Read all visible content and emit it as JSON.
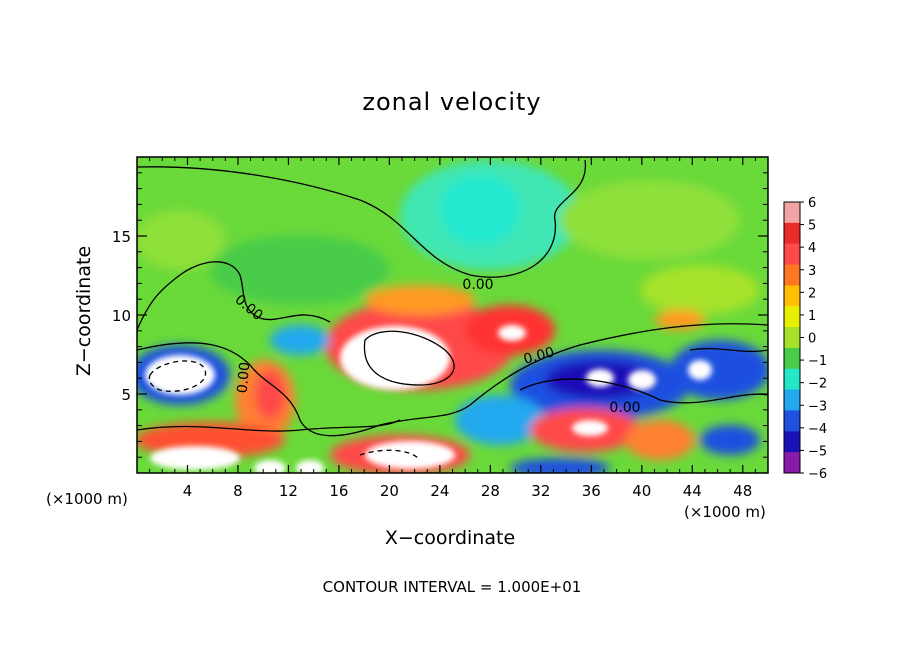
{
  "chart_data": {
    "type": "heatmap",
    "title": "zonal velocity",
    "xlabel": "X−coordinate",
    "ylabel": "Z−coordinate",
    "x_unit_left": "(×1000 m)",
    "x_unit_right": "(×1000 m)",
    "xlim": [
      0,
      50
    ],
    "ylim": [
      0,
      20
    ],
    "x_ticks": [
      4,
      8,
      12,
      16,
      20,
      24,
      28,
      32,
      36,
      40,
      44,
      48
    ],
    "y_ticks": [
      5,
      10,
      15
    ],
    "colorbar": {
      "levels": [
        6,
        5,
        4,
        3,
        2,
        1,
        0,
        -1,
        -2,
        -3,
        -4,
        -5,
        -6
      ],
      "labels": [
        "6",
        "5",
        "4",
        "3",
        "2",
        "1",
        "0",
        "−1",
        "−2",
        "−3",
        "−4",
        "−5",
        "−6"
      ],
      "colors": [
        "#f2a3a3",
        "#ee2b2b",
        "#ff4a4a",
        "#ff7722",
        "#ffbf00",
        "#e6f000",
        "#a6e22a",
        "#49cc49",
        "#22e8c8",
        "#22a8ee",
        "#1f50e0",
        "#1a10b8",
        "#8a1aa8"
      ]
    },
    "contour_labels": [
      "0.00",
      "0.00",
      "0.00",
      "0.00",
      "0.00"
    ],
    "note": "CONTOUR INTERVAL = 1.000E+01"
  }
}
